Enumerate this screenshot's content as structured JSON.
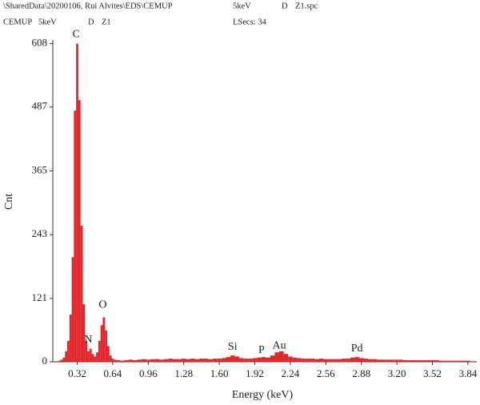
{
  "header": {
    "line1": [
      "\\SharedData\\20200106, Rui Alvites\\EDS\\CEMUP",
      "5keV",
      "D",
      "Z1.spc"
    ],
    "line2": [
      "CEMUP",
      "5keV",
      "D",
      "Z1",
      "LSecs: 34"
    ]
  },
  "chart_data": {
    "type": "bar",
    "ylabel": "Cnt",
    "xlabel": "Energy (keV)",
    "color": "#e3262b",
    "x": [
      0.12,
      0.14,
      0.16,
      0.18,
      0.2,
      0.22,
      0.24,
      0.26,
      0.28,
      0.3,
      0.32,
      0.34,
      0.36,
      0.38,
      0.4,
      0.42,
      0.44,
      0.46,
      0.48,
      0.5,
      0.52,
      0.54,
      0.56,
      0.58,
      0.6,
      0.62,
      0.64,
      0.66,
      0.68,
      0.7,
      0.72,
      0.76,
      0.8,
      0.84,
      0.88,
      0.92,
      0.96,
      1.0,
      1.04,
      1.08,
      1.12,
      1.16,
      1.2,
      1.24,
      1.28,
      1.32,
      1.36,
      1.4,
      1.44,
      1.48,
      1.52,
      1.56,
      1.6,
      1.64,
      1.68,
      1.72,
      1.76,
      1.8,
      1.84,
      1.88,
      1.92,
      1.96,
      2.0,
      2.04,
      2.08,
      2.12,
      2.16,
      2.2,
      2.24,
      2.28,
      2.32,
      2.36,
      2.4,
      2.44,
      2.48,
      2.52,
      2.56,
      2.6,
      2.64,
      2.68,
      2.72,
      2.76,
      2.8,
      2.84,
      2.88,
      2.92,
      2.96,
      3.0,
      3.04,
      3.08,
      3.12,
      3.16,
      3.2,
      3.24,
      3.28,
      3.32,
      3.36,
      3.4,
      3.44,
      3.48,
      3.52,
      3.56,
      3.6,
      3.64,
      3.68,
      3.72,
      3.76,
      3.8,
      3.84,
      3.88
    ],
    "values": [
      0,
      0,
      2,
      4,
      8,
      20,
      40,
      90,
      200,
      480,
      608,
      500,
      260,
      110,
      40,
      20,
      25,
      15,
      10,
      18,
      40,
      70,
      85,
      60,
      30,
      12,
      6,
      4,
      3,
      3,
      2,
      3,
      4,
      3,
      4,
      5,
      4,
      5,
      5,
      4,
      5,
      6,
      5,
      5,
      6,
      5,
      6,
      5,
      6,
      6,
      5,
      6,
      6,
      7,
      9,
      12,
      10,
      7,
      6,
      6,
      7,
      8,
      9,
      8,
      12,
      18,
      20,
      15,
      10,
      8,
      7,
      6,
      6,
      6,
      5,
      6,
      5,
      5,
      5,
      5,
      6,
      6,
      8,
      9,
      7,
      6,
      5,
      5,
      4,
      4,
      4,
      4,
      4,
      4,
      3,
      3,
      3,
      3,
      3,
      3,
      3,
      3,
      2,
      2,
      2,
      2,
      2,
      2,
      2,
      1
    ],
    "xlim": [
      0.1,
      3.92
    ],
    "ylim": [
      0,
      615
    ],
    "xticks": [
      0.32,
      0.64,
      0.96,
      1.28,
      {
        "value": 1.6,
        "label": "1.60"
      },
      1.92,
      2.24,
      2.56,
      2.88,
      {
        "value": 3.2,
        "label": "3.20"
      },
      3.52,
      3.84
    ],
    "yticks": [
      0,
      121,
      243,
      365,
      487,
      608
    ],
    "annotations": [
      {
        "text": "C",
        "x": 0.31,
        "y": 625
      },
      {
        "text": "N",
        "x": 0.42,
        "y": 42
      },
      {
        "text": "O",
        "x": 0.55,
        "y": 108
      },
      {
        "text": "Si",
        "x": 1.72,
        "y": 28
      },
      {
        "text": "P",
        "x": 1.98,
        "y": 22
      },
      {
        "text": "Au",
        "x": 2.14,
        "y": 30
      },
      {
        "text": "Pd",
        "x": 2.84,
        "y": 25
      }
    ]
  }
}
